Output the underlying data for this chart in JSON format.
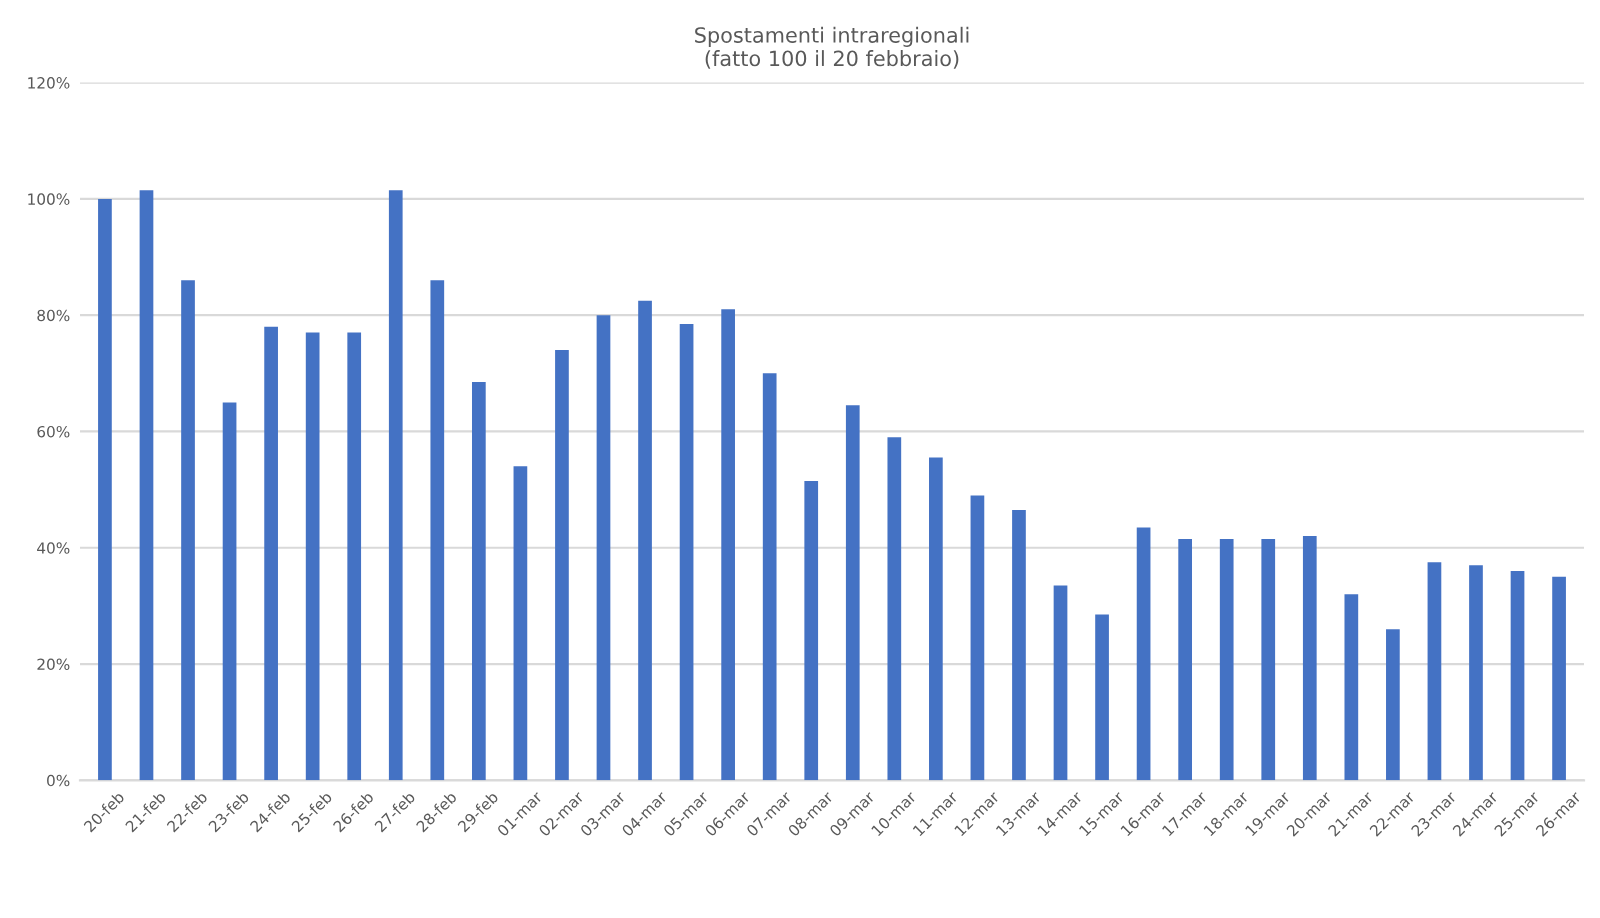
{
  "chart_data": {
    "type": "bar",
    "title": "Spostamenti intraregionali\n(fatto 100 il 20 febbraio)",
    "categories": [
      "20-feb",
      "21-feb",
      "22-feb",
      "23-feb",
      "24-feb",
      "25-feb",
      "26-feb",
      "27-feb",
      "28-feb",
      "29-feb",
      "01-mar",
      "02-mar",
      "03-mar",
      "04-mar",
      "05-mar",
      "06-mar",
      "07-mar",
      "08-mar",
      "09-mar",
      "10-mar",
      "11-mar",
      "12-mar",
      "13-mar",
      "14-mar",
      "15-mar",
      "16-mar",
      "17-mar",
      "18-mar",
      "19-mar",
      "20-mar",
      "21-mar",
      "22-mar",
      "23-mar",
      "24-mar",
      "25-mar",
      "26-mar"
    ],
    "values": [
      100,
      101.5,
      86,
      65,
      78,
      77,
      77,
      101.5,
      86,
      68.5,
      54,
      74,
      80,
      82.5,
      78.5,
      81,
      70,
      51.5,
      64.5,
      59,
      55.5,
      49,
      46.5,
      33.5,
      28.5,
      43.5,
      41.5,
      41.5,
      41.5,
      42,
      32,
      26,
      37.5,
      37,
      36,
      35
    ],
    "color": "#4472c4",
    "ylim": [
      0,
      120
    ],
    "yticks": [
      {
        "value": 0,
        "label": "0%"
      },
      {
        "value": 20,
        "label": "20%"
      },
      {
        "value": 40,
        "label": "40%"
      },
      {
        "value": 60,
        "label": "60%"
      },
      {
        "value": 80,
        "label": "80%"
      },
      {
        "value": 100,
        "label": "100%"
      },
      {
        "value": 120,
        "label": "120%"
      }
    ],
    "grid": "y",
    "legend": false
  }
}
